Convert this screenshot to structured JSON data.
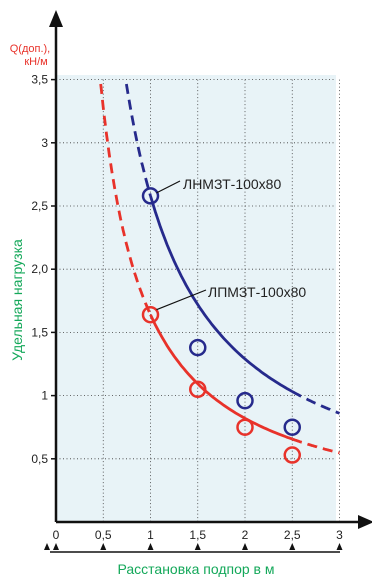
{
  "chart_data": {
    "type": "line",
    "x_range": [
      0,
      3
    ],
    "y_range": [
      0,
      3.5
    ],
    "x_ticks": [
      "0",
      "0,5",
      "1",
      "1,5",
      "2",
      "2,5",
      "3"
    ],
    "y_ticks": [
      "0,5",
      "1",
      "1,5",
      "2,0",
      "2,5",
      "3",
      "3,5"
    ],
    "y_tick_values": [
      0.5,
      1,
      1.5,
      2,
      2.5,
      3,
      3.5
    ],
    "x_tick_values": [
      0,
      0.5,
      1,
      1.5,
      2,
      2.5,
      3
    ],
    "ylabel_top": [
      "Q(доп.),",
      "кН/м"
    ],
    "ylabel_side": "Удельная нагрузка",
    "xlabel": "Расстановка подпор в м",
    "grid": true,
    "background": "#e8f3f7",
    "series": [
      {
        "name": "ЛНМЗТ-100х80",
        "color": "#262a8c",
        "x": [
          1.0,
          1.5,
          2.0,
          2.5
        ],
        "y": [
          2.58,
          1.38,
          0.96,
          0.75
        ],
        "curve_k": 2.58
      },
      {
        "name": "ЛПМЗТ-100х80",
        "color": "#e8322a",
        "x": [
          1.0,
          1.5,
          2.0,
          2.5
        ],
        "y": [
          1.64,
          1.05,
          0.75,
          0.53
        ],
        "curve_k": 1.64
      }
    ]
  }
}
